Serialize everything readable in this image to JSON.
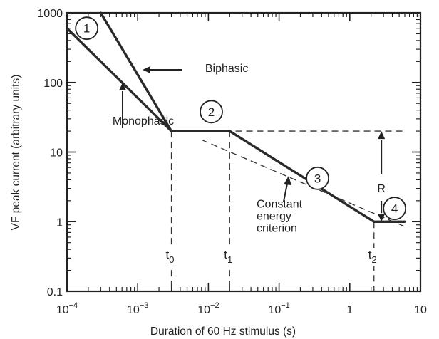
{
  "chart_data": {
    "type": "line",
    "title": "",
    "xlabel": "Duration of 60 Hz stimulus (s)",
    "ylabel": "VF peak current (arbitrary units)",
    "xscale": "log",
    "yscale": "log",
    "xlim": [
      0.0001,
      10
    ],
    "ylim": [
      0.1,
      1000
    ],
    "grid": false,
    "x_ticks": [
      {
        "value": 0.0001,
        "base": "10",
        "exp": "−4"
      },
      {
        "value": 0.001,
        "base": "10",
        "exp": "−3"
      },
      {
        "value": 0.01,
        "base": "10",
        "exp": "−2"
      },
      {
        "value": 0.1,
        "base": "10",
        "exp": "−1"
      },
      {
        "value": 1,
        "base": "1",
        "exp": ""
      },
      {
        "value": 10,
        "base": "10",
        "exp": ""
      }
    ],
    "y_ticks": [
      {
        "value": 1000,
        "label": "1000"
      },
      {
        "value": 100,
        "label": "100"
      },
      {
        "value": 10,
        "label": "10"
      },
      {
        "value": 1,
        "label": "1"
      },
      {
        "value": 0.1,
        "label": "0.1"
      }
    ],
    "series": [
      {
        "name": "Monophasic",
        "x": [
          0.0001,
          0.003,
          0.02,
          2.2,
          6
        ],
        "y": [
          600,
          20,
          20,
          1,
          1
        ]
      },
      {
        "name": "Biphasic",
        "x": [
          0.0003,
          0.003
        ],
        "y": [
          1000,
          20
        ]
      }
    ],
    "reference_lines": {
      "constant_energy": {
        "x": [
          0.008,
          6
        ],
        "y": [
          15,
          0.85
        ]
      },
      "horizontal_20": {
        "x": [
          0.003,
          6
        ],
        "y": [
          20,
          20
        ]
      }
    },
    "verticals": [
      {
        "x": 0.003,
        "y_top": 20,
        "sub_base": "t",
        "sub_text": "0"
      },
      {
        "x": 0.02,
        "y_top": 20,
        "sub_base": "t",
        "sub_text": "1"
      },
      {
        "x": 2.2,
        "y_top": 1,
        "sub_base": "t",
        "sub_text": "2"
      }
    ],
    "regions": [
      {
        "label": "1",
        "x": 0.00019,
        "y": 600
      },
      {
        "label": "2",
        "x": 0.011,
        "y": 38
      },
      {
        "label": "3",
        "x": 0.35,
        "y": 4.2
      },
      {
        "label": "4",
        "x": 4.3,
        "y": 1.55
      }
    ],
    "annotations": [
      {
        "text": "Biphasic",
        "x": 0.009,
        "y": 160
      },
      {
        "text": "Monophasic",
        "x": 0.0012,
        "y": 28
      },
      {
        "text": "Constant",
        "x": 0.27,
        "y": 1.8
      },
      {
        "text": "energy",
        "x": 0.27,
        "y": 1.2
      },
      {
        "text": "criterion",
        "x": 0.27,
        "y": 0.8
      }
    ],
    "range_label": {
      "text": "R",
      "x": 2.8,
      "y_top": 20,
      "y_bottom": 1
    }
  }
}
